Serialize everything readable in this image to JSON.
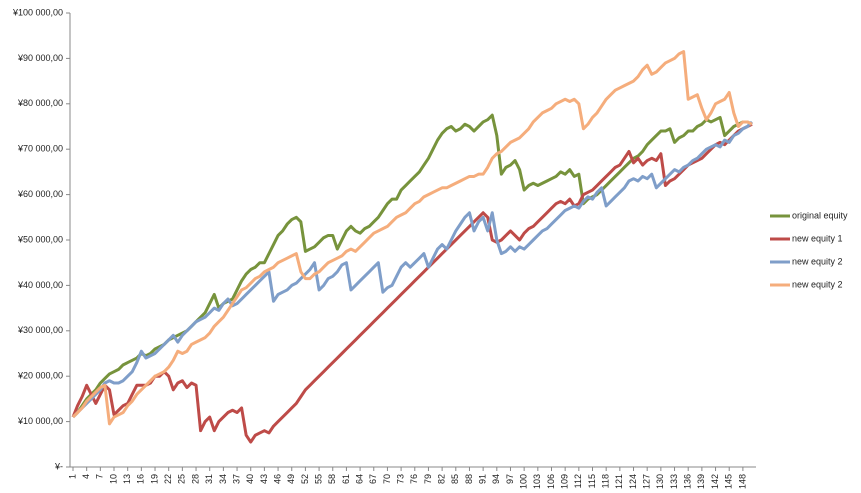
{
  "chart_data": {
    "type": "line",
    "categories": [
      "1",
      null,
      null,
      "4",
      null,
      null,
      "7",
      null,
      null,
      "10",
      null,
      null,
      "13",
      null,
      null,
      "16",
      null,
      null,
      "19",
      null,
      null,
      "22",
      null,
      null,
      "25",
      null,
      null,
      "28",
      null,
      null,
      "31",
      null,
      null,
      "34",
      null,
      null,
      "37",
      null,
      null,
      "40",
      null,
      null,
      "43",
      null,
      null,
      "46",
      null,
      null,
      "49",
      null,
      null,
      "52",
      null,
      null,
      "55",
      null,
      null,
      "58",
      null,
      null,
      "61",
      null,
      null,
      "64",
      null,
      null,
      "67",
      null,
      null,
      "70",
      null,
      null,
      "73",
      null,
      null,
      "76",
      null,
      null,
      "79",
      null,
      null,
      "82",
      null,
      null,
      "85",
      null,
      null,
      "88",
      null,
      null,
      "91",
      null,
      null,
      "94",
      null,
      null,
      "97",
      null,
      null,
      "100",
      null,
      null,
      "103",
      null,
      null,
      "106",
      null,
      null,
      "109",
      null,
      null,
      "112",
      null,
      null,
      "115",
      null,
      null,
      "118",
      null,
      null,
      "121",
      null,
      null,
      "124",
      null,
      null,
      "127",
      null,
      null,
      "130",
      null,
      null,
      "133",
      null,
      null,
      "136",
      null,
      null,
      "139",
      null,
      null,
      "142",
      null,
      null,
      "145",
      null,
      null,
      "148",
      null,
      null
    ],
    "ylim": [
      0,
      100000
    ],
    "yticks": [
      {
        "value": 0,
        "label": "¥-"
      },
      {
        "value": 10000,
        "label": "¥10 000,00"
      },
      {
        "value": 20000,
        "label": "¥20 000,00"
      },
      {
        "value": 30000,
        "label": "¥30 000,00"
      },
      {
        "value": 40000,
        "label": "¥40 000,00"
      },
      {
        "value": 50000,
        "label": "¥50 000,00"
      },
      {
        "value": 60000,
        "label": "¥60 000,00"
      },
      {
        "value": 70000,
        "label": "¥70 000,00"
      },
      {
        "value": 80000,
        "label": "¥80 000,00"
      },
      {
        "value": 90000,
        "label": "¥90 000,00"
      },
      {
        "value": 100000,
        "label": "¥100 000,00"
      }
    ],
    "legend": "right",
    "series": [
      {
        "name": "original equity",
        "color": "#77933c",
        "values": [
          11000,
          12000,
          13500,
          15000,
          16000,
          17000,
          18500,
          19500,
          20500,
          21000,
          21500,
          22500,
          23000,
          23500,
          24000,
          25000,
          24500,
          25000,
          26000,
          26500,
          27000,
          28000,
          28500,
          29000,
          29500,
          30000,
          31000,
          32000,
          33000,
          34000,
          36000,
          38000,
          35000,
          36000,
          36500,
          37000,
          39000,
          41000,
          42500,
          43500,
          44000,
          45000,
          45000,
          47000,
          49000,
          51000,
          52000,
          53500,
          54500,
          55000,
          54000,
          47500,
          48000,
          48500,
          49500,
          50500,
          51000,
          51000,
          48000,
          50000,
          52000,
          53000,
          52000,
          51500,
          52500,
          53000,
          54000,
          55000,
          56500,
          58000,
          59000,
          59000,
          61000,
          62000,
          63000,
          64000,
          65000,
          66500,
          68000,
          70000,
          72000,
          73500,
          74500,
          75000,
          74000,
          74500,
          75500,
          75000,
          74000,
          75000,
          76000,
          76500,
          77500,
          73000,
          64500,
          66000,
          66500,
          67500,
          65500,
          61000,
          62000,
          62500,
          62000,
          62500,
          63000,
          63500,
          64000,
          65000,
          64500,
          65500,
          64000,
          64500,
          58000,
          59000,
          59500,
          60000,
          61000,
          62000,
          63000,
          64000,
          65000,
          66000,
          67000,
          68000,
          68500,
          69500,
          71000,
          72000,
          73000,
          74000,
          74000,
          74500,
          71500,
          72500,
          73000,
          74000,
          74000,
          75000,
          75500,
          76500,
          76000,
          76500,
          77000,
          73000,
          74000,
          75000,
          75500,
          76000,
          76000,
          75500
        ]
      },
      {
        "name": "new equity 1",
        "color": "#be4b48",
        "values": [
          11000,
          13500,
          15500,
          18000,
          16000,
          14000,
          16000,
          18000,
          17000,
          11500,
          12500,
          13500,
          14000,
          16000,
          18000,
          18000,
          18000,
          18500,
          20000,
          20000,
          21000,
          20000,
          17000,
          18500,
          19000,
          17500,
          18500,
          18000,
          8000,
          10000,
          11000,
          8000,
          10000,
          11000,
          12000,
          12500,
          12000,
          13000,
          7000,
          5500,
          7000,
          7500,
          8000,
          7500,
          9000,
          10000,
          11000,
          12000,
          13000,
          14000,
          15500,
          17000,
          18000,
          19000,
          20000,
          21000,
          22000,
          23000,
          24000,
          25000,
          26000,
          27000,
          28000,
          29000,
          30000,
          31000,
          32000,
          33000,
          34000,
          35000,
          36000,
          37000,
          38000,
          39000,
          40000,
          41000,
          42000,
          43000,
          44000,
          45000,
          46000,
          47000,
          48000,
          49000,
          50000,
          51000,
          52000,
          53000,
          54000,
          55000,
          56000,
          55000,
          50000,
          49500,
          50000,
          51000,
          52000,
          51000,
          50000,
          51500,
          52500,
          53000,
          54000,
          55000,
          56000,
          57000,
          58000,
          58500,
          58000,
          59000,
          57500,
          58000,
          60000,
          60500,
          61000,
          62000,
          63000,
          64000,
          65000,
          66000,
          66500,
          68000,
          69500,
          67000,
          68000,
          66500,
          67500,
          68000,
          67500,
          69000,
          62000,
          63000,
          63500,
          64500,
          65500,
          66500,
          67000,
          67500,
          68000,
          69000,
          70000,
          71000,
          71500,
          71000,
          72000,
          73000,
          74000,
          74500,
          75000,
          75500
        ]
      },
      {
        "name": "new equity 2",
        "color": "#7f9ec9",
        "values": [
          11000,
          12000,
          13000,
          14000,
          15000,
          16000,
          17000,
          18500,
          19000,
          18500,
          18500,
          19000,
          20000,
          21000,
          23000,
          25500,
          24000,
          24500,
          25000,
          26000,
          27000,
          28000,
          29000,
          27500,
          29000,
          30000,
          31000,
          32000,
          32500,
          33000,
          34000,
          35000,
          34500,
          36000,
          37000,
          35500,
          36000,
          37000,
          38000,
          39000,
          40000,
          41000,
          42000,
          43000,
          36500,
          38000,
          38500,
          39000,
          40000,
          40500,
          41500,
          42500,
          43500,
          45000,
          39000,
          40000,
          41500,
          42000,
          43000,
          44500,
          45000,
          39000,
          40000,
          41000,
          42000,
          43000,
          44000,
          45000,
          38500,
          39500,
          40000,
          42000,
          44000,
          45000,
          44000,
          45000,
          46000,
          47000,
          44000,
          46000,
          48000,
          49000,
          48000,
          50000,
          52000,
          53500,
          55000,
          56000,
          52000,
          54000,
          55000,
          52000,
          56000,
          50000,
          47000,
          47500,
          48500,
          47500,
          48500,
          48000,
          49000,
          50000,
          51000,
          52000,
          52500,
          53500,
          54500,
          55500,
          56500,
          57000,
          57500,
          57000,
          58500,
          59500,
          59000,
          60500,
          61500,
          57500,
          58500,
          59500,
          60500,
          61500,
          63000,
          63500,
          63000,
          64000,
          63500,
          64500,
          61500,
          62500,
          63500,
          64500,
          65500,
          65000,
          66000,
          66500,
          67500,
          68000,
          69000,
          70000,
          70500,
          71000,
          70500,
          72000,
          71500,
          73000,
          73500,
          74500,
          75000,
          76000
        ]
      },
      {
        "name": "new equity 2",
        "color": "#f5ad7c",
        "values": [
          11000,
          12000,
          13000,
          14500,
          15500,
          16500,
          17500,
          18000,
          9500,
          11000,
          11500,
          12000,
          13500,
          14500,
          16000,
          17000,
          18000,
          19000,
          20000,
          20500,
          21000,
          22000,
          23500,
          25500,
          25000,
          25500,
          27000,
          27500,
          28000,
          28500,
          29500,
          31000,
          32000,
          33000,
          34500,
          36000,
          37500,
          39000,
          39500,
          40500,
          41500,
          42000,
          43000,
          43500,
          44000,
          45000,
          45500,
          46000,
          46500,
          47000,
          43000,
          41500,
          41500,
          42500,
          43000,
          44000,
          45000,
          45500,
          46000,
          46500,
          47500,
          48000,
          47500,
          48500,
          49500,
          50500,
          51500,
          52000,
          52500,
          53000,
          54000,
          55000,
          55500,
          56000,
          57000,
          58000,
          58500,
          59500,
          60000,
          60500,
          61000,
          61500,
          61500,
          62000,
          62500,
          63000,
          63500,
          64000,
          64000,
          64500,
          64500,
          66000,
          68000,
          69000,
          69500,
          70500,
          71500,
          72000,
          72500,
          73500,
          74500,
          76000,
          77000,
          78000,
          78500,
          79000,
          80000,
          80500,
          81000,
          80500,
          81000,
          80000,
          74500,
          75500,
          77000,
          78000,
          79500,
          81000,
          82000,
          83000,
          83500,
          84000,
          84500,
          85000,
          86000,
          87500,
          88500,
          86500,
          87000,
          88000,
          89000,
          89500,
          90000,
          91000,
          91500,
          81000,
          81500,
          82000,
          79000,
          76500,
          78000,
          80000,
          80500,
          81000,
          82500,
          78000,
          75000,
          76000,
          76000,
          75500
        ]
      }
    ]
  }
}
